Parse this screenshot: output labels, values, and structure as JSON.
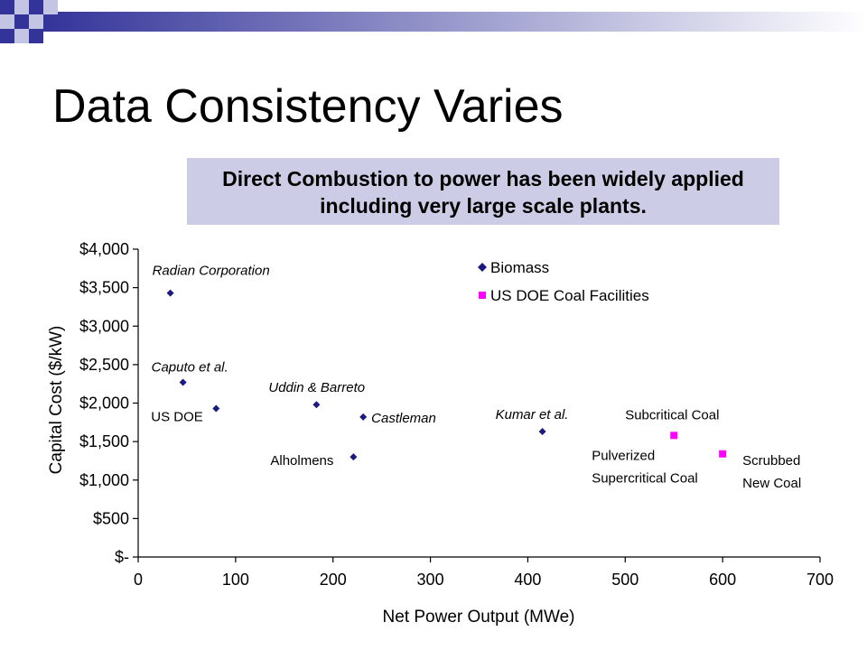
{
  "slide": {
    "title": "Data Consistency Varies",
    "callout": "Direct Combustion to power has been widely applied including very large scale plants."
  },
  "colors": {
    "biomass": "#1a1a80",
    "coal": "#ff00ff",
    "callout_bg": "#cccce6",
    "header_blue": "#333399"
  },
  "chart_data": {
    "type": "scatter",
    "xlabel": "Net Power Output (MWe)",
    "ylabel": "Capital Cost ($/kW)",
    "xlim": [
      0,
      700
    ],
    "ylim": [
      0,
      4000
    ],
    "x_ticks": [
      "0",
      "100",
      "200",
      "300",
      "400",
      "500",
      "600",
      "700"
    ],
    "y_ticks": [
      "$-",
      "$500",
      "$1,000",
      "$1,500",
      "$2,000",
      "$2,500",
      "$3,000",
      "$3,500",
      "$4,000"
    ],
    "legend_position": "top-right",
    "grid": false,
    "series": [
      {
        "name": "Biomass",
        "points": [
          {
            "x": 33,
            "y": 3430,
            "label": "Radian Corporation"
          },
          {
            "x": 46,
            "y": 2270,
            "label": "Caputo et al."
          },
          {
            "x": 80,
            "y": 1930,
            "label": "US DOE"
          },
          {
            "x": 183,
            "y": 1980,
            "label": "Uddin & Barreto"
          },
          {
            "x": 221,
            "y": 1300,
            "label": "Alholmens"
          },
          {
            "x": 231,
            "y": 1820,
            "label": "Castleman"
          },
          {
            "x": 415,
            "y": 1630,
            "label": "Kumar et al."
          }
        ]
      },
      {
        "name": "US DOE Coal Facilities",
        "points": [
          {
            "x": 550,
            "y": 1580,
            "label": "Subcritical Coal"
          },
          {
            "x": 550,
            "y": 1580,
            "label": "Pulverized Supercritical Coal"
          },
          {
            "x": 600,
            "y": 1340,
            "label": "Scrubbed New Coal"
          }
        ]
      }
    ]
  }
}
